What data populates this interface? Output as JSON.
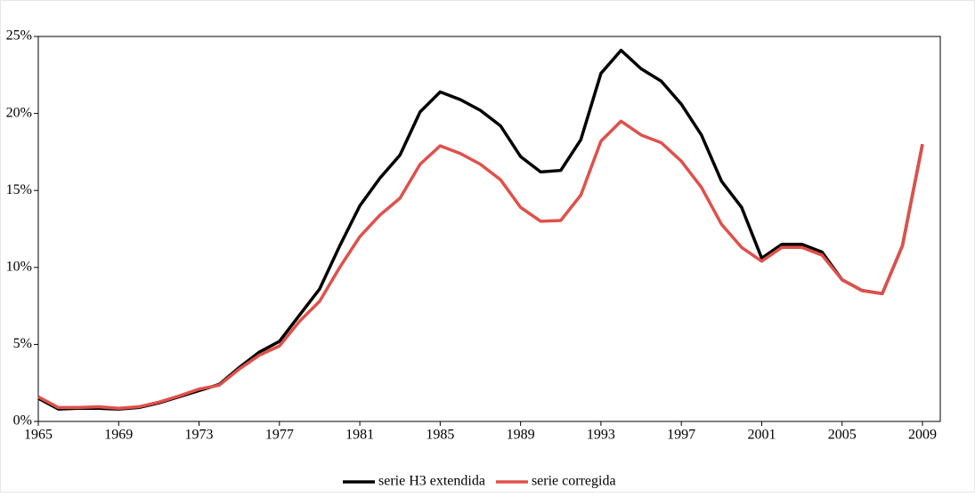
{
  "chart_data": {
    "type": "line",
    "x": [
      1965,
      1966,
      1967,
      1968,
      1969,
      1970,
      1971,
      1972,
      1973,
      1974,
      1975,
      1976,
      1977,
      1978,
      1979,
      1980,
      1981,
      1982,
      1983,
      1984,
      1985,
      1986,
      1987,
      1988,
      1989,
      1990,
      1991,
      1992,
      1993,
      1994,
      1995,
      1996,
      1997,
      1998,
      1999,
      2000,
      2001,
      2002,
      2003,
      2004,
      2005,
      2006,
      2007,
      2008,
      2009
    ],
    "series": [
      {
        "name": "serie H3 extendida",
        "color": "#000000",
        "values": [
          1.5,
          0.8,
          0.85,
          0.85,
          0.8,
          0.9,
          1.2,
          1.6,
          2.0,
          2.4,
          3.5,
          4.5,
          5.2,
          6.9,
          8.6,
          11.4,
          14.0,
          15.8,
          17.3,
          20.1,
          21.4,
          20.9,
          20.2,
          19.2,
          17.2,
          16.2,
          16.3,
          18.3,
          22.6,
          24.1,
          22.9,
          22.1,
          20.6,
          18.6,
          15.6,
          13.9,
          10.6,
          11.5,
          11.5,
          11.0,
          9.2,
          8.5,
          8.3,
          11.4,
          18.0
        ]
      },
      {
        "name": "serie corregida",
        "color": "#e0504a",
        "values": [
          1.6,
          0.9,
          0.9,
          0.95,
          0.85,
          0.95,
          1.25,
          1.65,
          2.1,
          2.35,
          3.4,
          4.3,
          4.9,
          6.5,
          7.8,
          10.0,
          12.0,
          13.4,
          14.5,
          16.7,
          17.9,
          17.4,
          16.7,
          15.7,
          13.9,
          13.0,
          13.05,
          14.7,
          18.2,
          19.5,
          18.6,
          18.1,
          16.9,
          15.2,
          12.8,
          11.3,
          10.4,
          11.3,
          11.3,
          10.8,
          9.2,
          8.5,
          8.3,
          11.4,
          18.0
        ]
      }
    ],
    "xlim": [
      1965,
      2009
    ],
    "xticks": [
      1965,
      1969,
      1973,
      1977,
      1981,
      1985,
      1989,
      1993,
      1997,
      2001,
      2005,
      2009
    ],
    "ylim": [
      0,
      25
    ],
    "yticks": [
      {
        "value": 0,
        "label": "0%"
      },
      {
        "value": 5,
        "label": "5%"
      },
      {
        "value": 10,
        "label": "10%"
      },
      {
        "value": 15,
        "label": "15%"
      },
      {
        "value": 20,
        "label": "20%"
      },
      {
        "value": 25,
        "label": "25%"
      }
    ],
    "legend": "bottom"
  }
}
